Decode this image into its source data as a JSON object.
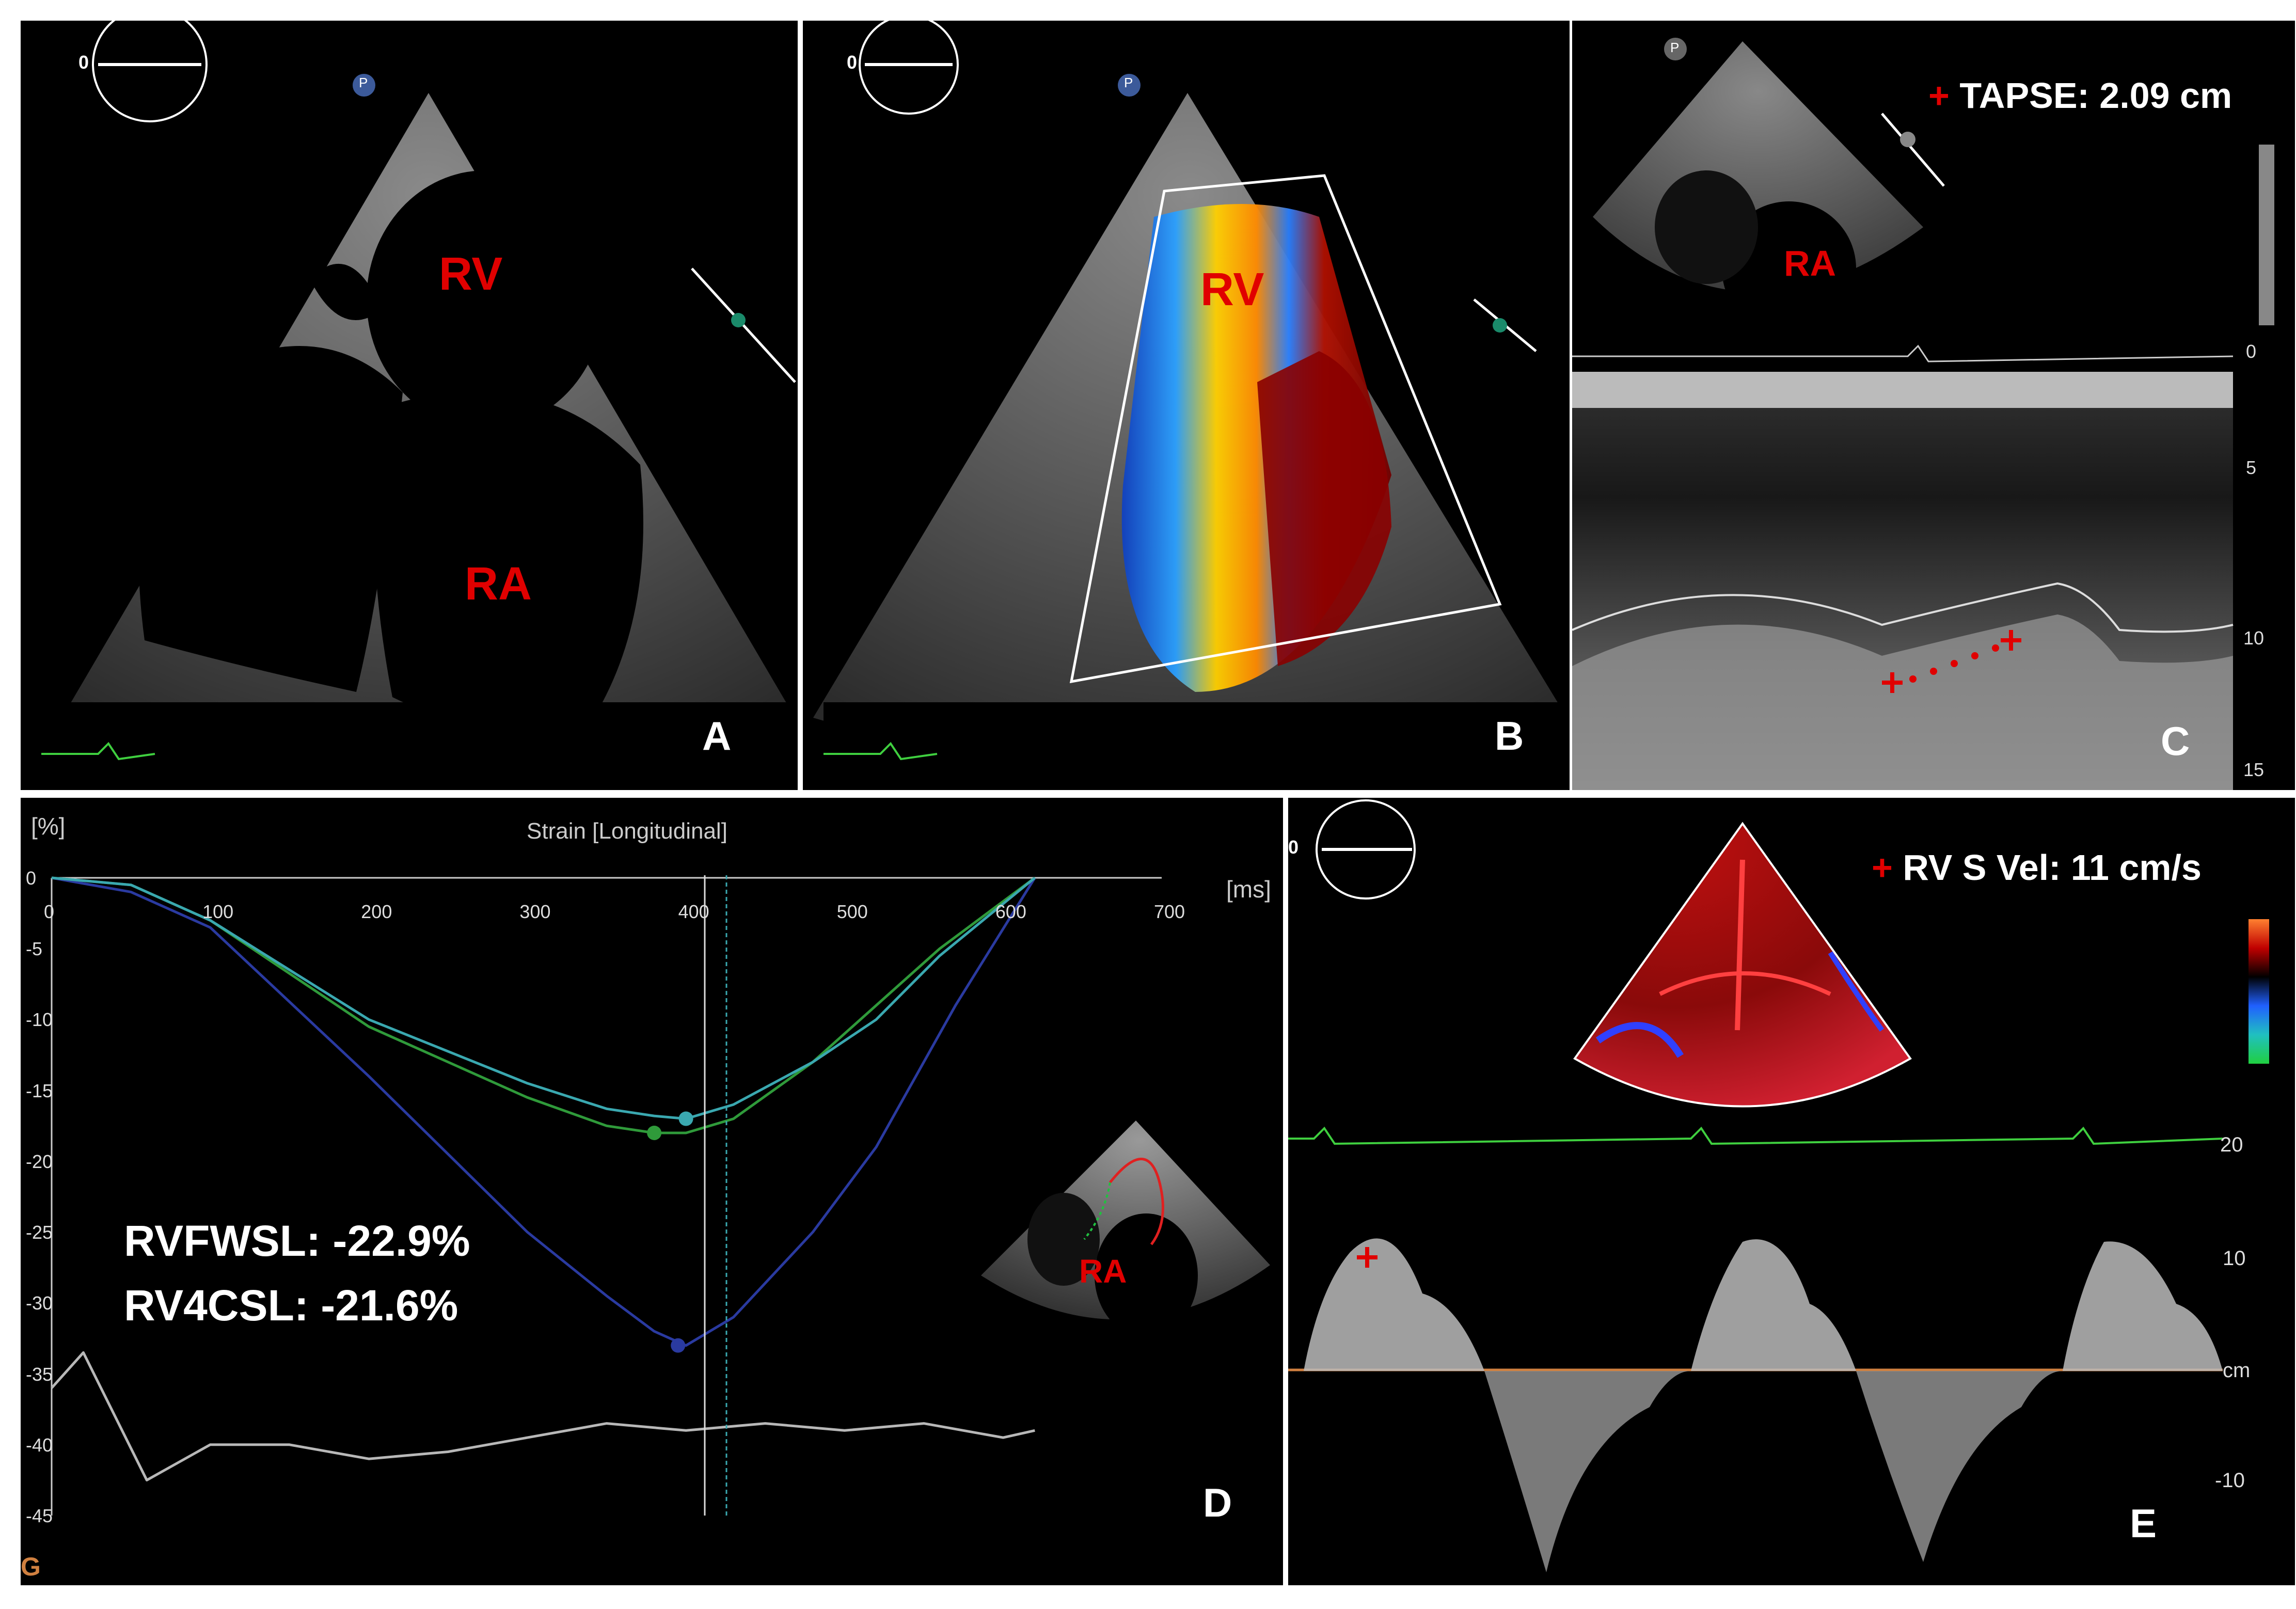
{
  "panels": {
    "a": {
      "letter": "A",
      "rv": "RV",
      "ra": "RA",
      "probe_angle": "0",
      "marker": "P"
    },
    "b": {
      "letter": "B",
      "rv": "RV",
      "probe_angle": "0",
      "marker": "P"
    },
    "c": {
      "letter": "C",
      "ra": "RA",
      "marker": "P",
      "measurement_label": "TAPSE: 2.09 cm",
      "depth_ticks": [
        "0",
        "5",
        "10",
        "15"
      ]
    },
    "d": {
      "letter": "D",
      "y_unit": "[%]",
      "title": "Strain [Longitudinal]",
      "x_unit": "[ms]",
      "ra": "RA",
      "rvfwsl": "RVFWSL: -22.9%",
      "rv4csl": "RV4CSL: -21.6%",
      "corner_mark": "G"
    },
    "e": {
      "letter": "E",
      "probe_angle": "0",
      "measurement_label": "RV S Vel: 11 cm/s",
      "velocity_ticks": [
        "20",
        "10",
        "cm",
        "-10"
      ]
    }
  },
  "colors": {
    "label_red": "#e00000",
    "ecg_green": "#3fcf3f",
    "baseline_orange": "#d08040"
  },
  "chart_data": {
    "type": "line",
    "title": "Strain [Longitudinal]",
    "xlabel": "[ms]",
    "ylabel": "[%]",
    "xlim": [
      0,
      700
    ],
    "ylim": [
      -45,
      0
    ],
    "x_ticks": [
      0,
      100,
      200,
      300,
      400,
      500,
      600,
      700
    ],
    "y_ticks": [
      0,
      -5,
      -10,
      -15,
      -20,
      -25,
      -30,
      -35,
      -40,
      -45
    ],
    "series": [
      {
        "color": "#2a3aa0",
        "x": [
          0,
          50,
          100,
          200,
          300,
          350,
          380,
          400,
          430,
          480,
          520,
          570,
          620
        ],
        "y": [
          0,
          -1,
          -3.5,
          -14,
          -25,
          -29.5,
          -32,
          -33,
          -31,
          -25,
          -19,
          -9,
          0
        ]
      },
      {
        "color": "#2f9a3a",
        "x": [
          0,
          50,
          100,
          200,
          300,
          350,
          380,
          400,
          430,
          480,
          520,
          560,
          620
        ],
        "y": [
          0,
          -0.5,
          -3,
          -10.5,
          -15.5,
          -17.5,
          -18,
          -18,
          -17,
          -13,
          -9,
          -5,
          0
        ]
      },
      {
        "color": "#3aa8b0",
        "x": [
          0,
          50,
          100,
          200,
          300,
          350,
          380,
          400,
          430,
          480,
          520,
          560,
          620
        ],
        "y": [
          0,
          -0.5,
          -3,
          -10,
          -14.5,
          -16.3,
          -16.8,
          -17,
          -16,
          -13,
          -10,
          -5.5,
          0
        ]
      },
      {
        "color": "#b8b8b8",
        "x": [
          0,
          20,
          60,
          100,
          150,
          200,
          250,
          300,
          350,
          400,
          450,
          500,
          550,
          600,
          620
        ],
        "y": [
          -36,
          -33.5,
          -42.5,
          -40,
          -40,
          -41,
          -40.5,
          -39.5,
          -38.5,
          -39,
          -38.5,
          -39,
          -38.5,
          -39.5,
          -39
        ]
      }
    ],
    "markers": [
      {
        "x": 380,
        "y": -18
      },
      {
        "x": 400,
        "y": -17
      },
      {
        "x": 395,
        "y": -33
      }
    ]
  }
}
